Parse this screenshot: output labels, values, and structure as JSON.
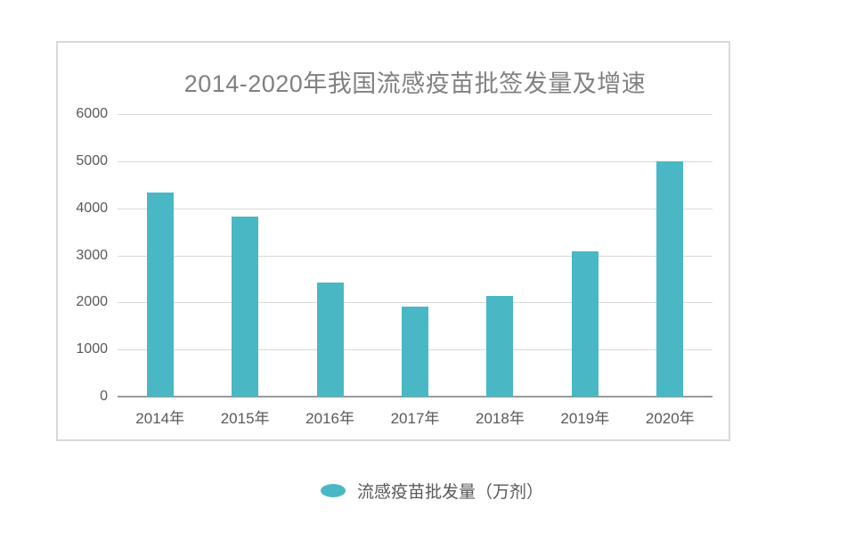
{
  "chart_data": {
    "type": "bar",
    "title": "2014-2020年我国流感疫苗批签发量及增速",
    "categories": [
      "2014年",
      "2015年",
      "2016年",
      "2017年",
      "2018年",
      "2019年",
      "2020年"
    ],
    "series": [
      {
        "name": "流感疫苗批发量（万剂）",
        "values": [
          4330,
          3830,
          2430,
          1910,
          2130,
          3080,
          5000
        ]
      }
    ],
    "xlabel": "",
    "ylabel": "",
    "ylim": [
      0,
      6000
    ],
    "yticks": [
      0,
      1000,
      2000,
      3000,
      4000,
      5000,
      6000
    ],
    "grid": true,
    "legend_position": "bottom"
  },
  "legend": {
    "label": "流感疫苗批发量（万剂）"
  },
  "colors": {
    "bar": "#4ab8c4",
    "gridline": "#d9d9d9",
    "baseline": "#9b9b9b",
    "card_border": "#d9d9d9",
    "title_text": "#808080",
    "tick_text": "#595959"
  }
}
